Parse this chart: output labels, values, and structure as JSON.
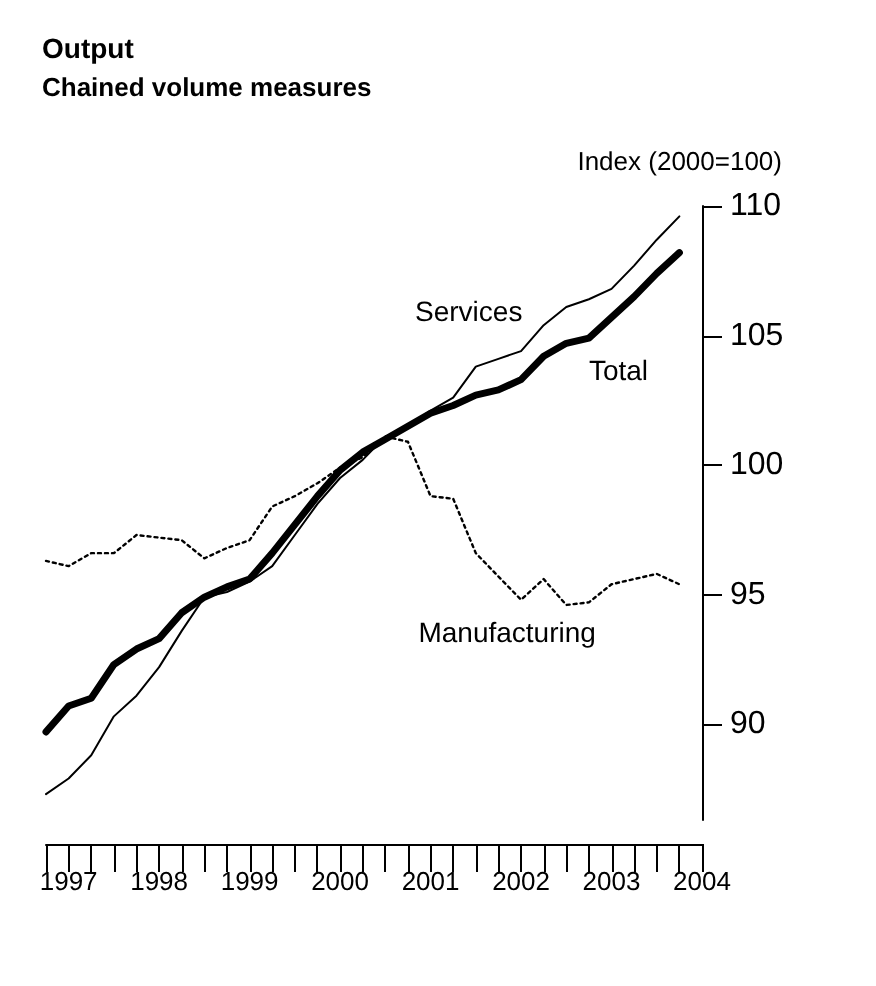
{
  "chart_data": {
    "type": "line",
    "title": "Output",
    "subtitle": "Chained volume measures",
    "ylabel": "Index (2000=100)",
    "x": [
      1997.25,
      1997.5,
      1997.75,
      1998,
      1998.25,
      1998.5,
      1998.75,
      1999,
      1999.25,
      1999.5,
      1999.75,
      2000,
      2000.25,
      2000.5,
      2000.75,
      2001,
      2001.25,
      2001.5,
      2001.75,
      2002,
      2002.25,
      2002.5,
      2002.75,
      2003,
      2003.25,
      2003.5,
      2003.75,
      2004,
      2004.25
    ],
    "series": [
      {
        "name": "Services",
        "color": "#000000",
        "line_style": "solid",
        "values": [
          87.3,
          87.9,
          88.8,
          90.3,
          91.1,
          92.2,
          93.6,
          94.9,
          95.1,
          95.5,
          96.1,
          97.3,
          98.5,
          99.5,
          100.2,
          101.1,
          101.5,
          102.1,
          102.6,
          103.8,
          104.1,
          104.4,
          105.4,
          106.1,
          106.4,
          106.8,
          107.7,
          108.7,
          109.6
        ]
      },
      {
        "name": "Total",
        "color": "#000000",
        "line_style": "solid",
        "values": [
          89.7,
          90.7,
          91.0,
          92.3,
          92.9,
          93.3,
          94.3,
          94.9,
          95.3,
          95.6,
          96.6,
          97.7,
          98.8,
          99.8,
          100.5,
          101.0,
          101.5,
          102.0,
          102.3,
          102.7,
          102.9,
          103.3,
          104.2,
          104.7,
          104.9,
          105.7,
          106.5,
          107.4,
          108.2
        ]
      },
      {
        "name": "Manufacturing",
        "color": "#000000",
        "line_style": "dotted",
        "values": [
          96.3,
          96.1,
          96.6,
          96.6,
          97.3,
          97.2,
          97.1,
          96.4,
          96.8,
          97.1,
          98.4,
          98.8,
          99.3,
          99.9,
          100.3,
          101.1,
          100.9,
          98.8,
          98.7,
          96.6,
          95.7,
          94.8,
          95.6,
          94.6,
          94.7,
          95.4,
          95.6,
          95.8,
          95.4
        ]
      }
    ],
    "xlim": [
      1997.25,
      2004.5
    ],
    "xticks": [
      {
        "value": 1997.25,
        "label": null
      },
      {
        "value": 1997.5,
        "label": "1997"
      },
      {
        "value": 1997.75,
        "label": null
      },
      {
        "value": 1998,
        "label": null
      },
      {
        "value": 1998.25,
        "label": null
      },
      {
        "value": 1998.5,
        "label": "1998"
      },
      {
        "value": 1998.75,
        "label": null
      },
      {
        "value": 1999,
        "label": null
      },
      {
        "value": 1999.25,
        "label": null
      },
      {
        "value": 1999.5,
        "label": "1999"
      },
      {
        "value": 1999.75,
        "label": null
      },
      {
        "value": 2000,
        "label": null
      },
      {
        "value": 2000.25,
        "label": null
      },
      {
        "value": 2000.5,
        "label": "2000"
      },
      {
        "value": 2000.75,
        "label": null
      },
      {
        "value": 2001,
        "label": null
      },
      {
        "value": 2001.25,
        "label": null
      },
      {
        "value": 2001.5,
        "label": "2001"
      },
      {
        "value": 2001.75,
        "label": null
      },
      {
        "value": 2002,
        "label": null
      },
      {
        "value": 2002.25,
        "label": null
      },
      {
        "value": 2002.5,
        "label": "2002"
      },
      {
        "value": 2002.75,
        "label": null
      },
      {
        "value": 2003,
        "label": null
      },
      {
        "value": 2003.25,
        "label": null
      },
      {
        "value": 2003.5,
        "label": "2003"
      },
      {
        "value": 2003.75,
        "label": null
      },
      {
        "value": 2004,
        "label": null
      },
      {
        "value": 2004.25,
        "label": null
      },
      {
        "value": 2004.5,
        "label": "2004"
      }
    ],
    "ylim": [
      86.3,
      110
    ],
    "yticks": [
      90,
      95,
      100,
      105,
      110
    ],
    "grid": false,
    "legend": false,
    "marker": "none"
  }
}
